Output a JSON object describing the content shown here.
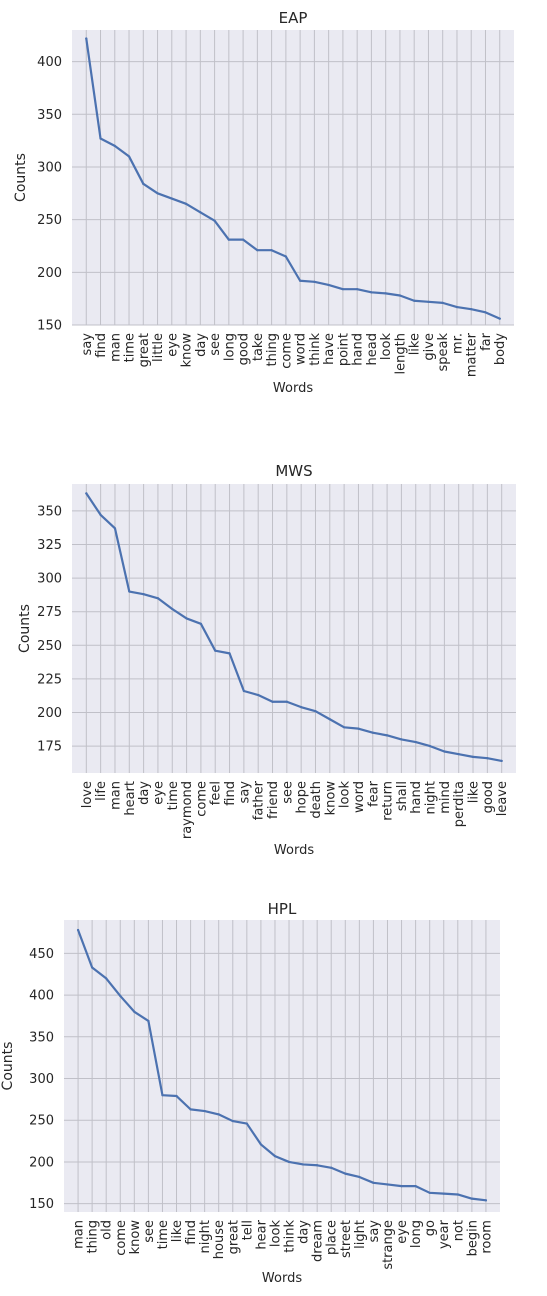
{
  "chart_data": [
    {
      "type": "line",
      "title": "EAP",
      "xlabel": "Words",
      "ylabel": "Counts",
      "ylim": [
        150,
        430
      ],
      "yticks": [
        150,
        200,
        250,
        300,
        350,
        400
      ],
      "grid": true,
      "colors": {
        "line": "#4c72b0",
        "plot_bg": "#eaeaf2",
        "grid": "#c0c0c8"
      },
      "categories": [
        "say",
        "find",
        "man",
        "time",
        "great",
        "little",
        "eye",
        "know",
        "day",
        "see",
        "long",
        "good",
        "take",
        "thing",
        "come",
        "word",
        "think",
        "have",
        "point",
        "hand",
        "head",
        "look",
        "length",
        "like",
        "give",
        "speak",
        "mr.",
        "matter",
        "far",
        "body"
      ],
      "values": [
        422,
        327,
        320,
        310,
        284,
        275,
        270,
        265,
        257,
        249,
        231,
        231,
        221,
        221,
        215,
        192,
        191,
        188,
        184,
        184,
        181,
        180,
        178,
        173,
        172,
        171,
        167,
        165,
        162,
        156
      ]
    },
    {
      "type": "line",
      "title": "MWS",
      "xlabel": "Words",
      "ylabel": "Counts",
      "ylim": [
        155,
        370
      ],
      "yticks": [
        175,
        200,
        225,
        250,
        275,
        300,
        325,
        350
      ],
      "grid": true,
      "colors": {
        "line": "#4c72b0",
        "plot_bg": "#eaeaf2",
        "grid": "#c0c0c8"
      },
      "categories": [
        "love",
        "life",
        "man",
        "heart",
        "day",
        "eye",
        "time",
        "raymond",
        "come",
        "feel",
        "find",
        "say",
        "father",
        "friend",
        "see",
        "hope",
        "death",
        "know",
        "look",
        "word",
        "fear",
        "return",
        "shall",
        "hand",
        "night",
        "mind",
        "perdita",
        "like",
        "good",
        "leave"
      ],
      "values": [
        363,
        347,
        337,
        290,
        288,
        285,
        277,
        270,
        266,
        246,
        244,
        216,
        213,
        208,
        208,
        204,
        201,
        195,
        189,
        188,
        185,
        183,
        180,
        178,
        175,
        171,
        169,
        167,
        166,
        164
      ]
    },
    {
      "type": "line",
      "title": "HPL",
      "xlabel": "Words",
      "ylabel": "Counts",
      "ylim": [
        140,
        490
      ],
      "yticks": [
        150,
        200,
        250,
        300,
        350,
        400,
        450
      ],
      "grid": true,
      "colors": {
        "line": "#4c72b0",
        "plot_bg": "#eaeaf2",
        "grid": "#c0c0c8"
      },
      "categories": [
        "man",
        "thing",
        "old",
        "come",
        "know",
        "see",
        "time",
        "like",
        "find",
        "night",
        "house",
        "great",
        "tell",
        "hear",
        "look",
        "think",
        "day",
        "dream",
        "place",
        "street",
        "light",
        "say",
        "strange",
        "eye",
        "long",
        "go",
        "year",
        "not",
        "begin",
        "room"
      ],
      "values": [
        478,
        433,
        420,
        399,
        380,
        369,
        280,
        279,
        263,
        261,
        257,
        249,
        246,
        221,
        207,
        200,
        197,
        196,
        193,
        186,
        182,
        175,
        173,
        171,
        171,
        163,
        162,
        161,
        156,
        154
      ]
    }
  ]
}
